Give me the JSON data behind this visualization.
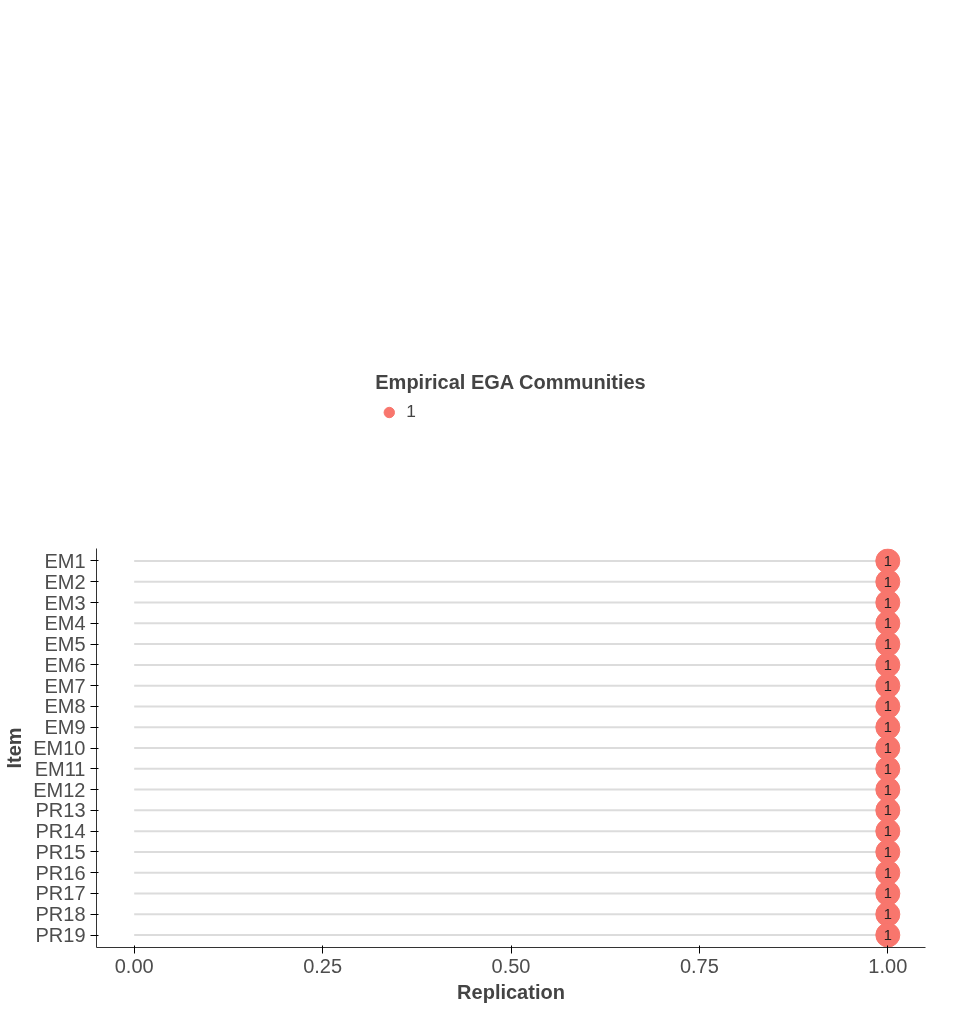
{
  "chart_data": {
    "type": "lollipop",
    "orientation": "horizontal",
    "xlabel": "Replication",
    "ylabel": "Item",
    "legend_title": "Empirical EGA Communities",
    "legend": "top",
    "categories": [
      "EM1",
      "EM2",
      "EM3",
      "EM4",
      "EM5",
      "EM6",
      "EM7",
      "EM8",
      "EM9",
      "EM10",
      "EM11",
      "EM12",
      "PR13",
      "PR14",
      "PR15",
      "PR16",
      "PR17",
      "PR18",
      "PR19"
    ],
    "series": [
      {
        "name": "1",
        "color": "#f8766d",
        "values": [
          1,
          1,
          1,
          1,
          1,
          1,
          1,
          1,
          1,
          1,
          1,
          1,
          1,
          1,
          1,
          1,
          1,
          1,
          1
        ],
        "value_labels": [
          "1",
          "1",
          "1",
          "1",
          "1",
          "1",
          "1",
          "1",
          "1",
          "1",
          "1",
          "1",
          "1",
          "1",
          "1",
          "1",
          "1",
          "1",
          "1"
        ]
      }
    ],
    "xlim": [
      -0.05,
      1.05
    ],
    "xticks": [
      {
        "value": 0,
        "label": "0.00"
      },
      {
        "value": 0.25,
        "label": "0.25"
      },
      {
        "value": 0.5,
        "label": "0.50"
      },
      {
        "value": 0.75,
        "label": "0.75"
      },
      {
        "value": 1,
        "label": "1.00"
      }
    ],
    "grid": false,
    "marker": "circle"
  }
}
